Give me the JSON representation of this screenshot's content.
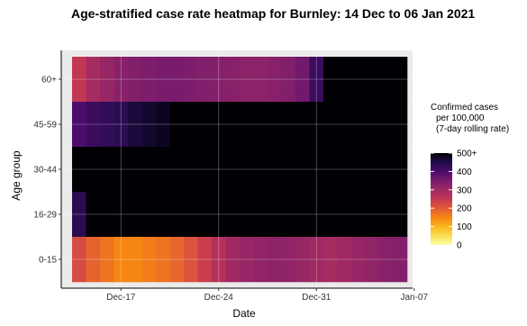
{
  "chart_data": {
    "type": "heatmap",
    "title": "Age-stratified case rate heatmap for Burnley: 14 Dec to 06 Jan 2021",
    "xlabel": "Date",
    "ylabel": "Age group",
    "x_dates": [
      "2020-12-14",
      "2020-12-15",
      "2020-12-16",
      "2020-12-17",
      "2020-12-18",
      "2020-12-19",
      "2020-12-20",
      "2020-12-21",
      "2020-12-22",
      "2020-12-23",
      "2020-12-24",
      "2020-12-25",
      "2020-12-26",
      "2020-12-27",
      "2020-12-28",
      "2020-12-29",
      "2020-12-30",
      "2020-12-31",
      "2021-01-01",
      "2021-01-02",
      "2021-01-03",
      "2021-01-04",
      "2021-01-05",
      "2021-01-06"
    ],
    "x_ticks": [
      {
        "date": "2020-12-17",
        "label": "Dec-17"
      },
      {
        "date": "2020-12-24",
        "label": "Dec-24"
      },
      {
        "date": "2020-12-31",
        "label": "Dec-31"
      },
      {
        "date": "2021-01-07",
        "label": "Jan-07"
      }
    ],
    "age_groups": [
      "0-15",
      "16-29",
      "30-44",
      "45-59",
      "60+"
    ],
    "values": {
      "60+": [
        250,
        290,
        310,
        330,
        340,
        345,
        350,
        350,
        345,
        340,
        335,
        330,
        325,
        325,
        330,
        340,
        360,
        420,
        500,
        500,
        500,
        500,
        500,
        500
      ],
      "45-59": [
        400,
        420,
        430,
        440,
        460,
        470,
        480,
        500,
        500,
        500,
        500,
        500,
        500,
        500,
        500,
        500,
        500,
        500,
        500,
        500,
        500,
        500,
        500,
        500
      ],
      "30-44": [
        500,
        500,
        500,
        500,
        500,
        500,
        500,
        500,
        500,
        500,
        500,
        500,
        500,
        500,
        500,
        500,
        500,
        500,
        500,
        500,
        500,
        500,
        500,
        500
      ],
      "16-29": [
        440,
        500,
        500,
        500,
        500,
        500,
        500,
        500,
        500,
        500,
        500,
        500,
        500,
        500,
        500,
        500,
        500,
        500,
        500,
        500,
        500,
        500,
        500,
        500
      ],
      "0-15": [
        220,
        190,
        170,
        150,
        150,
        160,
        170,
        185,
        210,
        240,
        270,
        300,
        310,
        320,
        325,
        320,
        310,
        300,
        290,
        300,
        310,
        320,
        330,
        335
      ]
    },
    "legend": {
      "title": [
        "Confirmed cases",
        "per 100,000",
        "(7-day rolling rate)"
      ],
      "ticks": [
        500,
        400,
        300,
        200,
        100,
        0
      ],
      "tick_labels": [
        "500+",
        "400",
        "300",
        "200",
        "100",
        "0"
      ],
      "range": [
        0,
        500
      ],
      "placement": "right",
      "colormap": "inferno"
    },
    "grid": true
  }
}
